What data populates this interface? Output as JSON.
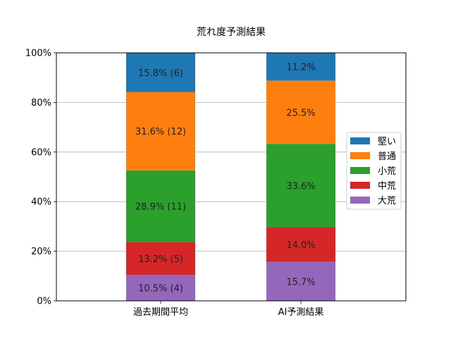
{
  "chart_data": {
    "type": "bar",
    "stacked": true,
    "title": "荒れ度予測結果",
    "xlabel": "",
    "ylabel": "",
    "ylim": [
      0,
      100
    ],
    "yticks": [
      "0%",
      "20%",
      "40%",
      "60%",
      "80%",
      "100%"
    ],
    "ytick_values": [
      0,
      20,
      40,
      60,
      80,
      100
    ],
    "grid": "y",
    "legend_position": "center-right",
    "categories": [
      "過去期間平均",
      "AI予測結果"
    ],
    "series": [
      {
        "name": "大荒",
        "color": "#9467bd",
        "values": [
          10.5,
          15.7
        ],
        "labels": [
          "10.5% (4)",
          "15.7%"
        ]
      },
      {
        "name": "中荒",
        "color": "#d62728",
        "values": [
          13.2,
          14.0
        ],
        "labels": [
          "13.2% (5)",
          "14.0%"
        ]
      },
      {
        "name": "小荒",
        "color": "#2ca02c",
        "values": [
          28.9,
          33.6
        ],
        "labels": [
          "28.9% (11)",
          "33.6%"
        ]
      },
      {
        "name": "普通",
        "color": "#ff7f0e",
        "values": [
          31.6,
          25.5
        ],
        "labels": [
          "31.6% (12)",
          "25.5%"
        ]
      },
      {
        "name": "堅い",
        "color": "#1f77b4",
        "values": [
          15.8,
          11.2
        ],
        "labels": [
          "15.8% (6)",
          "11.2%"
        ]
      }
    ],
    "legend_order": [
      "堅い",
      "普通",
      "小荒",
      "中荒",
      "大荒"
    ]
  }
}
